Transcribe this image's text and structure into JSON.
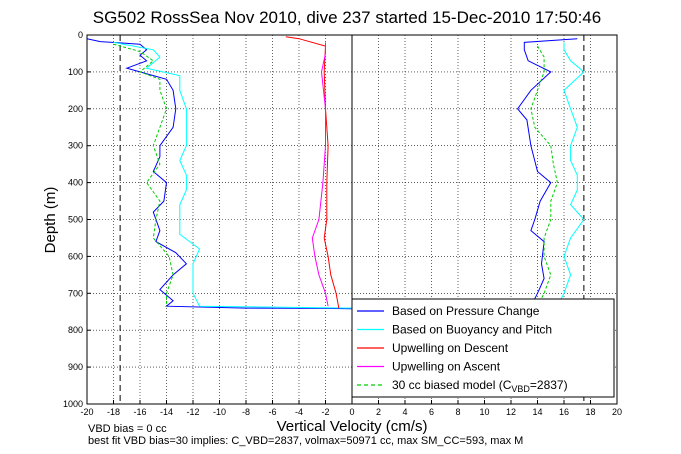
{
  "chart_data": {
    "type": "line",
    "title": "SG502 RossSea Nov 2010, dive 237 started 15-Dec-2010 17:50:46",
    "xlabel": "Vertical Velocity (cm/s)",
    "ylabel": "Depth (m)",
    "xlim": [
      -20,
      20
    ],
    "ylim": [
      1000,
      0
    ],
    "y_reversed": true,
    "grid": true,
    "legend_position": "bottom-right",
    "xticks": [
      "-20",
      "-18",
      "-16",
      "-14",
      "-12",
      "-10",
      "-8",
      "-6",
      "-4",
      "-2",
      "0",
      "2",
      "4",
      "6",
      "8",
      "10",
      "12",
      "14",
      "16",
      "18",
      "20"
    ],
    "yticks": [
      "0",
      "100",
      "200",
      "300",
      "400",
      "500",
      "600",
      "700",
      "800",
      "900",
      "1000"
    ],
    "reference_lines": [
      {
        "type": "dashed-vertical",
        "x": -17.5,
        "color": "#000000"
      },
      {
        "type": "dashed-vertical",
        "x": 17.5,
        "color": "#000000"
      }
    ],
    "series": [
      {
        "name": "Based on Pressure Change",
        "color": "#0000ff",
        "descent": [
          [
            -20,
            10
          ],
          [
            -19,
            18
          ],
          [
            -16,
            25
          ],
          [
            -15.5,
            40
          ],
          [
            -16,
            55
          ],
          [
            -15.5,
            70
          ],
          [
            -17,
            90
          ],
          [
            -16,
            100
          ],
          [
            -14,
            120
          ],
          [
            -13.5,
            150
          ],
          [
            -13.3,
            200
          ],
          [
            -13.5,
            250
          ],
          [
            -14.5,
            300
          ],
          [
            -14.5,
            330
          ],
          [
            -15,
            370
          ],
          [
            -14,
            400
          ],
          [
            -14.2,
            450
          ],
          [
            -15,
            480
          ],
          [
            -14.5,
            530
          ],
          [
            -14.8,
            560
          ],
          [
            -13.3,
            590
          ],
          [
            -12.5,
            620
          ],
          [
            -13.5,
            650
          ],
          [
            -14.5,
            690
          ],
          [
            -13.5,
            720
          ],
          [
            -14,
            735
          ],
          [
            -8,
            740
          ],
          [
            -2,
            741
          ],
          [
            0,
            742
          ]
        ],
        "ascent": [
          [
            17,
            10
          ],
          [
            13,
            20
          ],
          [
            13,
            40
          ],
          [
            13.3,
            70
          ],
          [
            15,
            100
          ],
          [
            13.5,
            150
          ],
          [
            12.5,
            200
          ],
          [
            13.2,
            230
          ],
          [
            13.5,
            300
          ],
          [
            14,
            370
          ],
          [
            15,
            400
          ],
          [
            14.2,
            450
          ],
          [
            13.8,
            500
          ],
          [
            13.5,
            530
          ],
          [
            14.5,
            560
          ],
          [
            14.3,
            620
          ],
          [
            14.5,
            660
          ],
          [
            14,
            700
          ],
          [
            13.5,
            735
          ]
        ]
      },
      {
        "name": "Based on Buoyancy and Pitch",
        "color": "#00ffff",
        "descent": [
          [
            -18,
            20
          ],
          [
            -15,
            40
          ],
          [
            -14.5,
            60
          ],
          [
            -15.5,
            90
          ],
          [
            -13,
            110
          ],
          [
            -13,
            150
          ],
          [
            -12.5,
            200
          ],
          [
            -12.5,
            250
          ],
          [
            -12.5,
            300
          ],
          [
            -13,
            340
          ],
          [
            -12.5,
            380
          ],
          [
            -12.5,
            420
          ],
          [
            -13,
            460
          ],
          [
            -13,
            500
          ],
          [
            -13,
            540
          ],
          [
            -11.5,
            580
          ],
          [
            -12,
            620
          ],
          [
            -12,
            660
          ],
          [
            -12,
            700
          ],
          [
            -11.5,
            735
          ],
          [
            0,
            740
          ]
        ],
        "ascent": [
          [
            16,
            20
          ],
          [
            16,
            40
          ],
          [
            16.5,
            70
          ],
          [
            17.5,
            100
          ],
          [
            16,
            150
          ],
          [
            16.5,
            200
          ],
          [
            17,
            250
          ],
          [
            16.5,
            300
          ],
          [
            16.5,
            340
          ],
          [
            17,
            380
          ],
          [
            17,
            420
          ],
          [
            16.5,
            460
          ],
          [
            17.5,
            500
          ],
          [
            16.5,
            550
          ],
          [
            16,
            600
          ],
          [
            16.5,
            650
          ],
          [
            16,
            700
          ],
          [
            15.5,
            735
          ]
        ]
      },
      {
        "name": "Upwelling on Descent",
        "color": "#ff0000",
        "descent": [
          [
            -5,
            5
          ],
          [
            -4,
            10
          ],
          [
            -2,
            30
          ],
          [
            -2.1,
            100
          ],
          [
            -2,
            200
          ],
          [
            -1.8,
            300
          ],
          [
            -1.9,
            400
          ],
          [
            -1.9,
            500
          ],
          [
            -2.1,
            550
          ],
          [
            -1.8,
            600
          ],
          [
            -1.6,
            650
          ],
          [
            -1.2,
            700
          ],
          [
            -1,
            740
          ]
        ]
      },
      {
        "name": "Upwelling on Ascent",
        "color": "#ff00ff",
        "ascent": [
          [
            -2,
            20
          ],
          [
            -2,
            50
          ],
          [
            -2.3,
            100
          ],
          [
            -2,
            200
          ],
          [
            -2,
            300
          ],
          [
            -2.2,
            400
          ],
          [
            -2.5,
            500
          ],
          [
            -3,
            550
          ],
          [
            -2.8,
            600
          ],
          [
            -2.5,
            650
          ],
          [
            -2,
            700
          ],
          [
            -1.8,
            735
          ]
        ]
      },
      {
        "name": "30 cc biased model (C",
        "name_sub": "VBD",
        "name_tail": "=2837)",
        "color": "#00cc00",
        "descent": [
          [
            -18,
            25
          ],
          [
            -16,
            45
          ],
          [
            -15,
            70
          ],
          [
            -16,
            100
          ],
          [
            -14.5,
            120
          ],
          [
            -14.5,
            150
          ],
          [
            -14,
            200
          ],
          [
            -14.5,
            250
          ],
          [
            -15,
            300
          ],
          [
            -14.5,
            350
          ],
          [
            -15.5,
            400
          ],
          [
            -14.5,
            450
          ],
          [
            -14.8,
            500
          ],
          [
            -15,
            550
          ],
          [
            -13.8,
            600
          ],
          [
            -13.5,
            650
          ],
          [
            -14,
            700
          ],
          [
            -14,
            735
          ]
        ],
        "ascent": [
          [
            14,
            30
          ],
          [
            14.5,
            60
          ],
          [
            14.5,
            100
          ],
          [
            14,
            150
          ],
          [
            13.5,
            200
          ],
          [
            13.8,
            250
          ],
          [
            15,
            300
          ],
          [
            15.2,
            350
          ],
          [
            15.5,
            400
          ],
          [
            15,
            450
          ],
          [
            15,
            500
          ],
          [
            14.5,
            550
          ],
          [
            14.5,
            600
          ],
          [
            15,
            650
          ],
          [
            14.5,
            700
          ],
          [
            14,
            735
          ]
        ]
      }
    ]
  },
  "footer": {
    "line1": "VBD bias = 0 cc",
    "line2": "best fit VBD bias=30 implies: C_VBD=2837, volmax=50971 cc, max SM_CC=593, max M"
  }
}
